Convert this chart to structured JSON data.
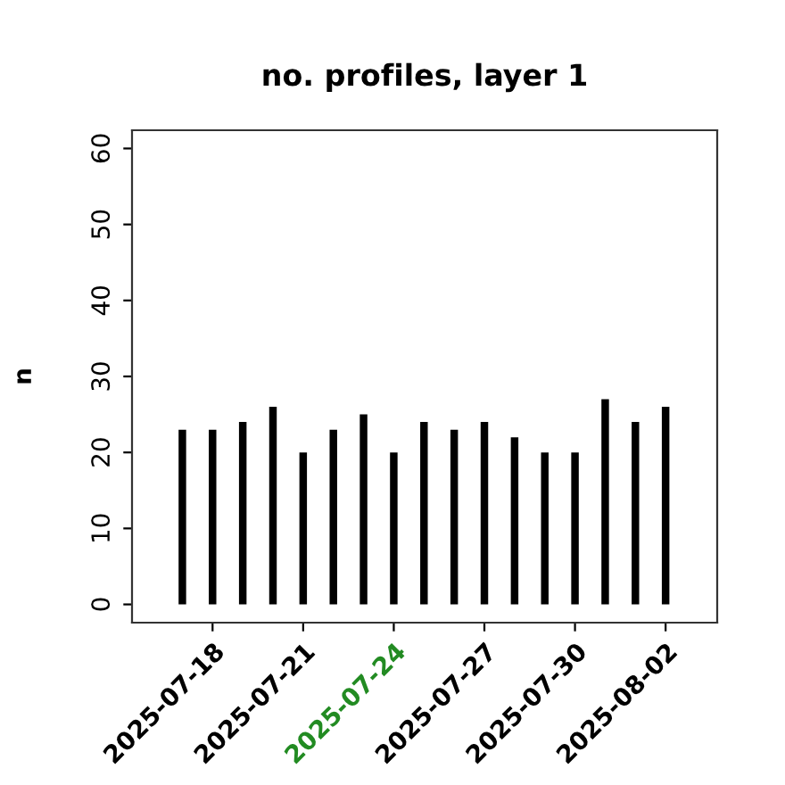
{
  "chart_data": {
    "type": "bar",
    "title": "no. profiles, layer 1",
    "ylabel": "n",
    "color": "#000000",
    "x": [
      "2025-07-17",
      "2025-07-18",
      "2025-07-19",
      "2025-07-20",
      "2025-07-21",
      "2025-07-22",
      "2025-07-23",
      "2025-07-24",
      "2025-07-25",
      "2025-07-26",
      "2025-07-27",
      "2025-07-28",
      "2025-07-29",
      "2025-07-30",
      "2025-07-31",
      "2025-08-01",
      "2025-08-02"
    ],
    "values": [
      23,
      23,
      24,
      26,
      20,
      23,
      25,
      20,
      24,
      23,
      24,
      22,
      20,
      20,
      27,
      24,
      26
    ],
    "xlim": [
      "2025-07-15T08:00",
      "2025-08-03T17:00"
    ],
    "xticks": [
      "2025-07-18",
      "2025-07-21",
      "2025-07-24",
      "2025-07-27",
      "2025-07-30",
      "2025-08-02"
    ],
    "ylim": [
      -2.4,
      62.4
    ],
    "yticks": [
      0,
      10,
      20,
      30,
      40,
      50,
      60
    ],
    "grid": false,
    "legend": false
  }
}
